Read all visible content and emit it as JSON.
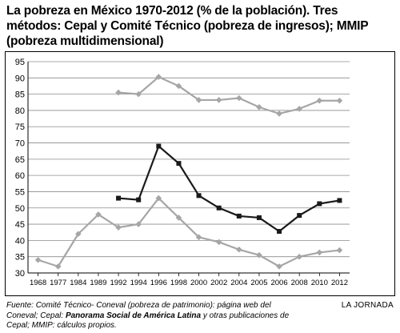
{
  "title": "La pobreza en México 1970-2012 (% de la población). Tres métodos: Cepal y Comité Técnico (pobreza de ingresos); MMIP (pobreza multidimensional)",
  "source": {
    "part1": "Fuente: Comité Técnico- Coneval (pobreza de patrimonio): página web del Coneval; Cepal: ",
    "bold": "Panorama Social de América Latina",
    "part2": " y otras publicaciones de Cepal; MMIP: cálculos propios."
  },
  "credit": "LA JORNADA",
  "chart_data": {
    "type": "line",
    "ylim": [
      30,
      95
    ],
    "yticks": [
      30,
      35,
      40,
      45,
      50,
      55,
      60,
      65,
      70,
      75,
      80,
      85,
      90,
      95
    ],
    "x": [
      "1968",
      "1977",
      "1984",
      "1989",
      "1992",
      "1994",
      "1996",
      "1998",
      "2000",
      "2002",
      "2004",
      "2005",
      "2006",
      "2008",
      "2010",
      "2012"
    ],
    "grid": true,
    "series": [
      {
        "color": "#a6a6a6",
        "marker": "diamond",
        "values": [
          null,
          null,
          null,
          null,
          85.5,
          85,
          90.3,
          87.5,
          83.2,
          83.2,
          83.8,
          81,
          79,
          80.5,
          83,
          83
        ]
      },
      {
        "color": "#1a1a1a",
        "marker": "square",
        "values": [
          null,
          null,
          null,
          null,
          53,
          52.5,
          69,
          63.7,
          53.8,
          50,
          47.5,
          47,
          42.8,
          47.7,
          51.3,
          52.3
        ]
      },
      {
        "color": "#a6a6a6",
        "marker": "diamond",
        "values": [
          34,
          32,
          42,
          48,
          44,
          45,
          53,
          47,
          41,
          39.5,
          37.2,
          35.5,
          32,
          35,
          36.3,
          37
        ]
      }
    ]
  }
}
